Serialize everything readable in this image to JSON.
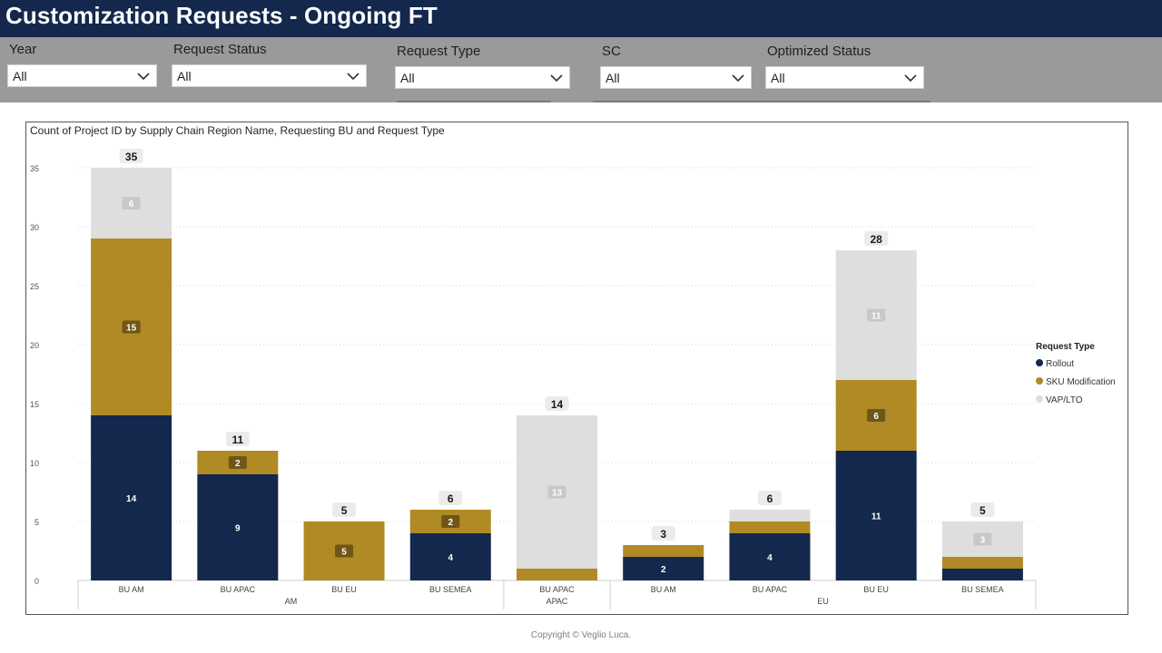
{
  "header": {
    "title": "Customization Requests - Ongoing FT"
  },
  "filters": [
    {
      "label": "Year",
      "value": "All"
    },
    {
      "label": "Request Status",
      "value": "All"
    },
    {
      "label": "Request Type",
      "value": "All"
    },
    {
      "label": "SC",
      "value": "All"
    },
    {
      "label": "Optimized Status",
      "value": "All"
    }
  ],
  "colors": {
    "rollout": "#13284c",
    "sku": "#b08a24",
    "vap": "#dedede",
    "header": "#13284c",
    "filterbar": "#9a9a9a"
  },
  "chart_data": {
    "type": "bar",
    "stacked": true,
    "title": "Count of Project ID by Supply Chain Region Name, Requesting BU and Request Type",
    "ylim": [
      0,
      35
    ],
    "yticks": [
      0,
      5,
      10,
      15,
      20,
      25,
      30,
      35
    ],
    "grid": true,
    "legend": {
      "title": "Request Type",
      "position": "right"
    },
    "categories": [
      "BU AM",
      "BU APAC",
      "BU EU",
      "BU SEMEA",
      "BU APAC",
      "BU AM",
      "BU APAC",
      "BU EU",
      "BU SEMEA"
    ],
    "groups": [
      {
        "name": "AM",
        "count": 4
      },
      {
        "name": "APAC",
        "count": 1
      },
      {
        "name": "EU",
        "count": 4
      }
    ],
    "series": [
      {
        "name": "Rollout",
        "color": "#13284c",
        "values": [
          14,
          9,
          0,
          4,
          0,
          2,
          4,
          11,
          1
        ],
        "labels": [
          "14",
          "9",
          "",
          "4",
          "",
          "2",
          "4",
          "11",
          ""
        ]
      },
      {
        "name": "SKU Modification",
        "color": "#b08a24",
        "values": [
          15,
          2,
          5,
          2,
          1,
          1,
          1,
          6,
          1
        ],
        "labels": [
          "15",
          "2",
          "5",
          "2",
          "",
          "",
          "",
          "6",
          ""
        ]
      },
      {
        "name": "VAP/LTO",
        "color": "#dedede",
        "values": [
          6,
          0,
          0,
          0,
          13,
          0,
          1,
          11,
          3
        ],
        "labels": [
          "6",
          "",
          "",
          "",
          "13",
          "",
          "",
          "11",
          "3"
        ]
      }
    ],
    "totals": [
      35,
      11,
      5,
      6,
      14,
      3,
      6,
      28,
      5
    ]
  },
  "footer": {
    "copyright": "Copyright © Veglio Luca."
  }
}
